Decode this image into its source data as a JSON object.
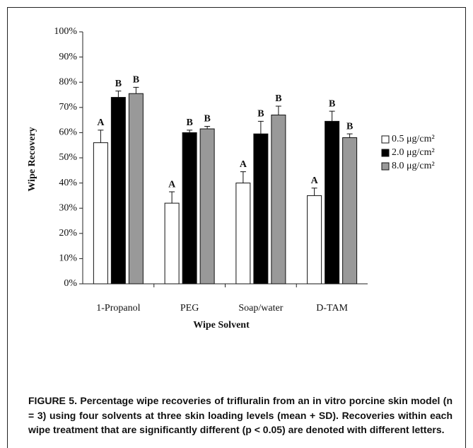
{
  "chart_data": {
    "type": "bar",
    "categories": [
      "1-Propanol",
      "PEG",
      "Soap/water",
      "D-TAM"
    ],
    "xlabel": "Wipe Solvent",
    "ylabel": "Wipe Recovery",
    "series": [
      {
        "name": "0.5 μg/cm²",
        "color": "#ffffff",
        "values": [
          56,
          32,
          40,
          35
        ],
        "errors": [
          5,
          4.5,
          4.5,
          3
        ],
        "letters": [
          "A",
          "A",
          "A",
          "A"
        ]
      },
      {
        "name": "2.0 μg/cm²",
        "color": "#000000",
        "values": [
          74,
          60,
          59.5,
          64.5
        ],
        "errors": [
          2.5,
          1,
          5,
          4
        ],
        "letters": [
          "B",
          "B",
          "B",
          "B"
        ]
      },
      {
        "name": "8.0 μg/cm²",
        "color": "#999999",
        "values": [
          75.5,
          61.5,
          67,
          58
        ],
        "errors": [
          2.5,
          1,
          3.5,
          1.5
        ],
        "letters": [
          "B",
          "B",
          "B",
          "B"
        ]
      }
    ],
    "ylim": [
      0,
      100
    ],
    "yticks": [
      {
        "value": 0,
        "label": "0%"
      },
      {
        "value": 10,
        "label": "10%"
      },
      {
        "value": 20,
        "label": "20%"
      },
      {
        "value": 30,
        "label": "30%"
      },
      {
        "value": 40,
        "label": "40%"
      },
      {
        "value": 50,
        "label": "50%"
      },
      {
        "value": 60,
        "label": "60%"
      },
      {
        "value": 70,
        "label": "70%"
      },
      {
        "value": 80,
        "label": "80%"
      },
      {
        "value": 90,
        "label": "90%"
      },
      {
        "value": 100,
        "label": "100%"
      }
    ],
    "legend": "right",
    "caption": "FIGURE 5. Percentage wipe recoveries of trifluralin from an in vitro porcine skin model (n = 3) using four solvents at three skin loading levels (mean + SD). Recoveries within each wipe treatment that are significantly different (p < 0.05) are denoted with different letters."
  }
}
